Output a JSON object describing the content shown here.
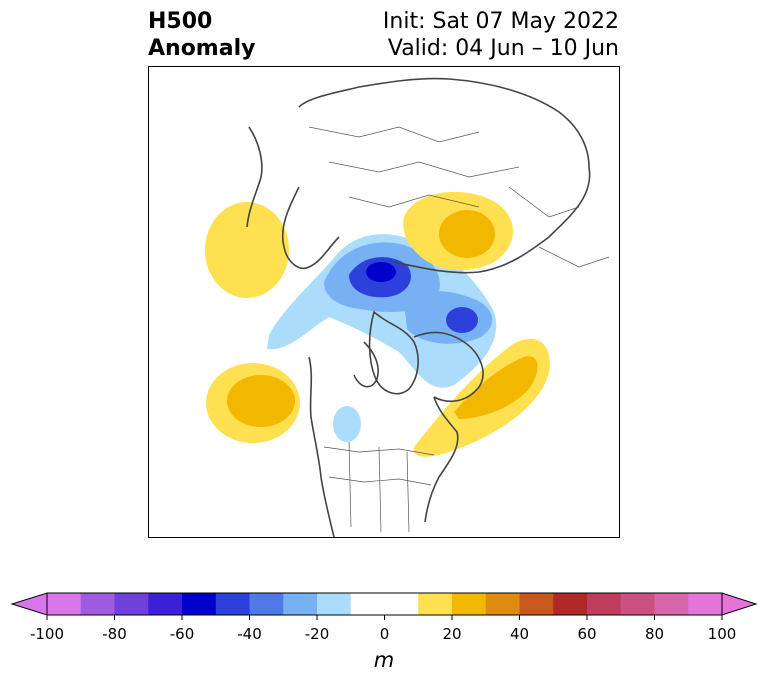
{
  "title": {
    "line1": "H500",
    "line2": "Anomaly"
  },
  "subtitle": {
    "init": "Init: Sat 07 May 2022",
    "valid": "Valid: 04 Jun – 10 Jun"
  },
  "colorbar": {
    "units": "m",
    "ticks": [
      "-100",
      "-80",
      "-60",
      "-40",
      "-20",
      "0",
      "20",
      "40",
      "60",
      "80",
      "100"
    ],
    "tick_values": [
      -100,
      -80,
      -60,
      -40,
      -20,
      0,
      20,
      40,
      60,
      80,
      100
    ],
    "bins": [
      {
        "min": -100,
        "max": -90,
        "color": "#d676e8"
      },
      {
        "min": -90,
        "max": -80,
        "color": "#a05ce0"
      },
      {
        "min": -80,
        "max": -70,
        "color": "#7040dc"
      },
      {
        "min": -70,
        "max": -60,
        "color": "#3c1fd8"
      },
      {
        "min": -60,
        "max": -50,
        "color": "#0000cc"
      },
      {
        "min": -50,
        "max": -40,
        "color": "#2d40dc"
      },
      {
        "min": -40,
        "max": -30,
        "color": "#4f7ae8"
      },
      {
        "min": -30,
        "max": -20,
        "color": "#78b0f4"
      },
      {
        "min": -20,
        "max": -10,
        "color": "#acdcfb"
      },
      {
        "min": -10,
        "max": 10,
        "color": "#ffffff"
      },
      {
        "min": 10,
        "max": 20,
        "color": "#ffe050"
      },
      {
        "min": 20,
        "max": 30,
        "color": "#f2b800"
      },
      {
        "min": 30,
        "max": 40,
        "color": "#de8c10"
      },
      {
        "min": 40,
        "max": 50,
        "color": "#c8581c"
      },
      {
        "min": 50,
        "max": 60,
        "color": "#b02828"
      },
      {
        "min": 60,
        "max": 70,
        "color": "#c03c5c"
      },
      {
        "min": 70,
        "max": 80,
        "color": "#cc5080"
      },
      {
        "min": 80,
        "max": 90,
        "color": "#d866aa"
      },
      {
        "min": 90,
        "max": 100,
        "color": "#e474d8"
      }
    ],
    "range": [
      -100,
      100
    ],
    "extend": "both"
  }
}
